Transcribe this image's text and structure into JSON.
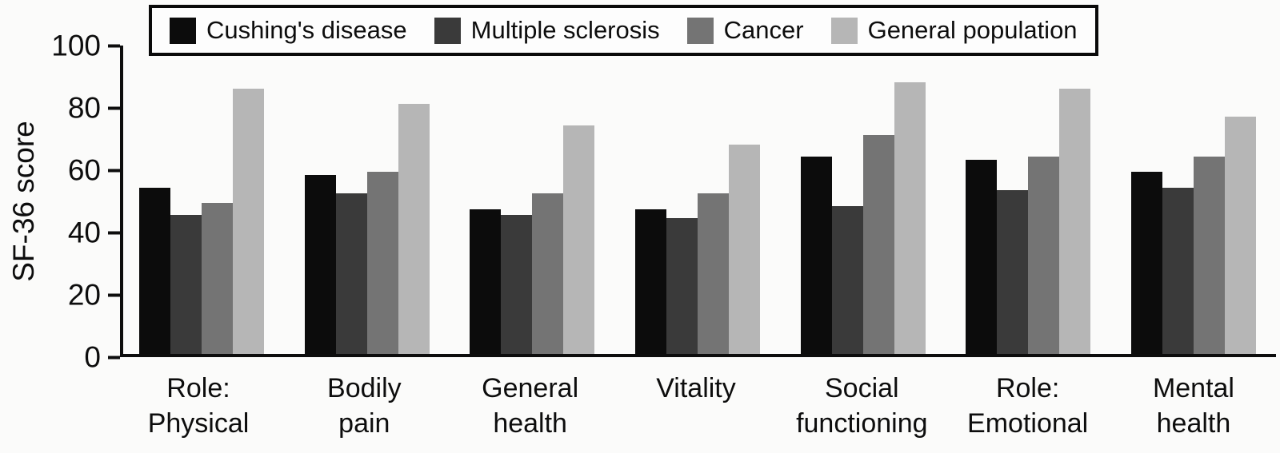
{
  "chart_data": {
    "type": "bar",
    "title": "",
    "xlabel": "",
    "ylabel": "SF-36 score",
    "ylim": [
      0,
      100
    ],
    "yticks": [
      0,
      20,
      40,
      60,
      80,
      100
    ],
    "grid": false,
    "legend_position": "top",
    "categories": [
      "Role:\nPhysical",
      "Bodily\npain",
      "General\nhealth",
      "Vitality",
      "Social\nfunctioning",
      "Role:\nEmotional",
      "Mental\nhealth"
    ],
    "series": [
      {
        "name": "Cushing's disease",
        "color": "#0c0c0c",
        "values": [
          54,
          58,
          47,
          47,
          64,
          63,
          59
        ]
      },
      {
        "name": "Multiple sclerosis",
        "color": "#3a3a3a",
        "values": [
          45,
          52,
          45,
          44,
          48,
          53,
          54
        ]
      },
      {
        "name": "Cancer",
        "color": "#747474",
        "values": [
          49,
          59,
          52,
          52,
          71,
          64,
          64
        ]
      },
      {
        "name": "General population",
        "color": "#b6b6b6",
        "values": [
          86,
          81,
          74,
          68,
          88,
          86,
          77
        ]
      }
    ]
  }
}
